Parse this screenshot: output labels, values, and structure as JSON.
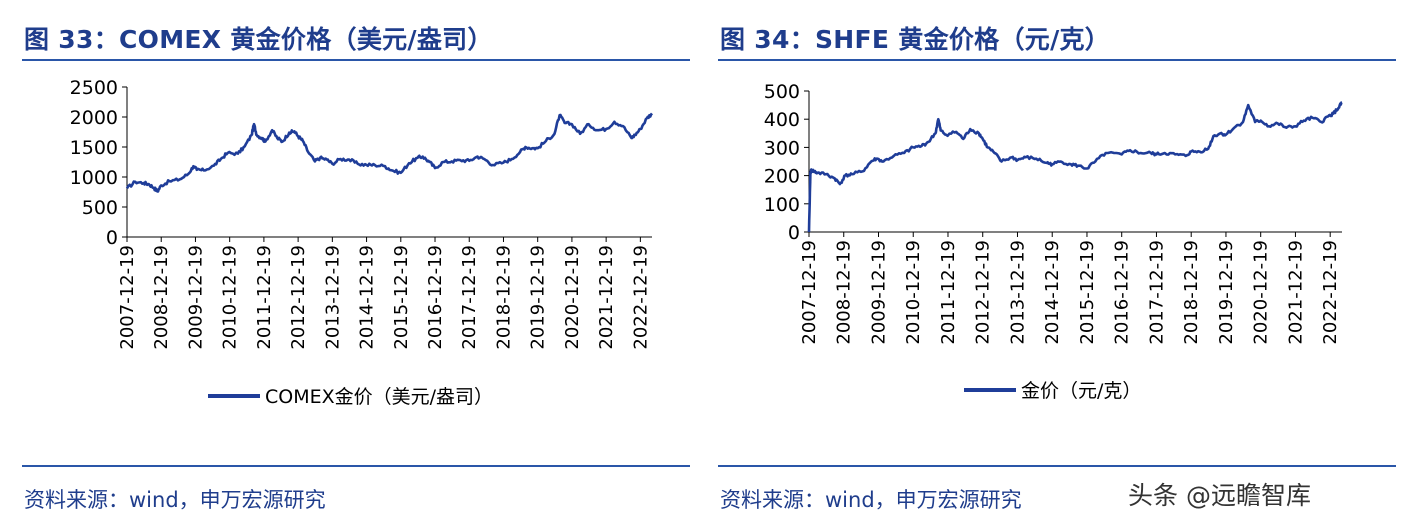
{
  "left": {
    "title": "图 33：COMEX 黄金价格（美元/盎司）",
    "source": "资料来源：wind，申万宏源研究"
  },
  "right": {
    "title": "图 34：SHFE 黄金价格（元/克）",
    "source": "资料来源：wind，申万宏源研究"
  },
  "watermark": "头条 @远瞻智库",
  "chart_data": [
    {
      "type": "line",
      "title": "",
      "xlabel": "",
      "ylabel": "",
      "color": "#1f3d99",
      "ylim": [
        0,
        2500
      ],
      "yticks": [
        0,
        500,
        1000,
        1500,
        2000,
        2500
      ],
      "x_tick_labels": [
        "2007-12-19",
        "2008-12-19",
        "2009-12-19",
        "2010-12-19",
        "2011-12-19",
        "2012-12-19",
        "2013-12-19",
        "2014-12-19",
        "2015-12-19",
        "2016-12-19",
        "2017-12-19",
        "2018-12-19",
        "2019-12-19",
        "2020-12-19",
        "2021-12-19",
        "2022-12-19"
      ],
      "legend": "COMEX金价（美元/盎司）",
      "legend_position": "bottom",
      "series": [
        {
          "name": "COMEX金价（美元/盎司）",
          "x": [
            2007.96,
            2008.2,
            2008.45,
            2008.6,
            2008.75,
            2008.85,
            2008.96,
            2009.2,
            2009.5,
            2009.75,
            2009.9,
            2010.0,
            2010.2,
            2010.5,
            2010.7,
            2010.9,
            2011.2,
            2011.4,
            2011.6,
            2011.67,
            2011.75,
            2011.9,
            2012.0,
            2012.2,
            2012.35,
            2012.5,
            2012.7,
            2012.85,
            2012.96,
            2013.1,
            2013.25,
            2013.45,
            2013.6,
            2013.8,
            2013.96,
            2014.2,
            2014.45,
            2014.7,
            2014.96,
            2015.2,
            2015.5,
            2015.7,
            2015.96,
            2016.2,
            2016.45,
            2016.6,
            2016.8,
            2016.96,
            2017.2,
            2017.45,
            2017.7,
            2017.96,
            2018.2,
            2018.4,
            2018.65,
            2018.96,
            2019.2,
            2019.45,
            2019.6,
            2019.8,
            2019.96,
            2020.2,
            2020.45,
            2020.6,
            2020.75,
            2020.96,
            2021.2,
            2021.45,
            2021.7,
            2021.96,
            2022.2,
            2022.45,
            2022.7,
            2022.8,
            2022.96,
            2023.15,
            2023.3
          ],
          "values": [
            810,
            920,
            900,
            880,
            820,
            760,
            860,
            930,
            960,
            1050,
            1180,
            1120,
            1110,
            1190,
            1300,
            1400,
            1390,
            1510,
            1700,
            1880,
            1700,
            1650,
            1590,
            1780,
            1650,
            1590,
            1740,
            1760,
            1680,
            1600,
            1420,
            1260,
            1320,
            1290,
            1220,
            1300,
            1290,
            1220,
            1200,
            1200,
            1180,
            1110,
            1070,
            1230,
            1320,
            1340,
            1250,
            1150,
            1250,
            1260,
            1280,
            1270,
            1340,
            1300,
            1200,
            1240,
            1300,
            1420,
            1500,
            1480,
            1480,
            1600,
            1720,
            2030,
            1900,
            1880,
            1720,
            1880,
            1780,
            1800,
            1920,
            1850,
            1650,
            1700,
            1800,
            1980,
            2060
          ]
        }
      ]
    },
    {
      "type": "line",
      "title": "",
      "xlabel": "",
      "ylabel": "",
      "color": "#1f3d99",
      "ylim": [
        0,
        500
      ],
      "yticks": [
        0,
        100,
        200,
        300,
        400,
        500
      ],
      "x_tick_labels": [
        "2007-12-19",
        "2008-12-19",
        "2009-12-19",
        "2010-12-19",
        "2011-12-19",
        "2012-12-19",
        "2013-12-19",
        "2014-12-19",
        "2015-12-19",
        "2016-12-19",
        "2017-12-19",
        "2018-12-19",
        "2019-12-19",
        "2020-12-19",
        "2021-12-19",
        "2022-12-19"
      ],
      "legend": "金价（元/克）",
      "legend_position": "bottom",
      "series": [
        {
          "name": "金价（元/克）",
          "x": [
            2007.96,
            2008.0,
            2008.03,
            2008.1,
            2008.2,
            2008.45,
            2008.7,
            2008.85,
            2009.0,
            2009.2,
            2009.5,
            2009.75,
            2009.9,
            2010.1,
            2010.4,
            2010.7,
            2010.96,
            2011.2,
            2011.4,
            2011.6,
            2011.68,
            2011.75,
            2011.9,
            2012.2,
            2012.4,
            2012.6,
            2012.85,
            2012.96,
            2013.1,
            2013.3,
            2013.5,
            2013.8,
            2013.96,
            2014.2,
            2014.5,
            2014.8,
            2014.96,
            2015.2,
            2015.5,
            2015.7,
            2015.96,
            2016.2,
            2016.5,
            2016.96,
            2017.2,
            2017.5,
            2017.8,
            2017.96,
            2018.2,
            2018.5,
            2018.8,
            2018.96,
            2019.2,
            2019.45,
            2019.6,
            2019.8,
            2019.96,
            2020.2,
            2020.45,
            2020.6,
            2020.8,
            2020.96,
            2021.2,
            2021.45,
            2021.7,
            2021.96,
            2022.2,
            2022.45,
            2022.7,
            2022.9,
            2023.05,
            2023.2,
            2023.3
          ],
          "values": [
            0,
            210,
            220,
            215,
            210,
            205,
            190,
            170,
            200,
            205,
            215,
            250,
            260,
            250,
            270,
            280,
            300,
            305,
            320,
            350,
            400,
            360,
            345,
            355,
            330,
            365,
            350,
            330,
            300,
            280,
            250,
            265,
            255,
            265,
            260,
            245,
            240,
            250,
            240,
            235,
            225,
            250,
            280,
            275,
            290,
            280,
            280,
            275,
            280,
            275,
            270,
            285,
            285,
            295,
            340,
            350,
            345,
            370,
            390,
            450,
            390,
            395,
            375,
            385,
            370,
            375,
            395,
            405,
            390,
            410,
            420,
            440,
            460
          ]
        }
      ]
    }
  ]
}
